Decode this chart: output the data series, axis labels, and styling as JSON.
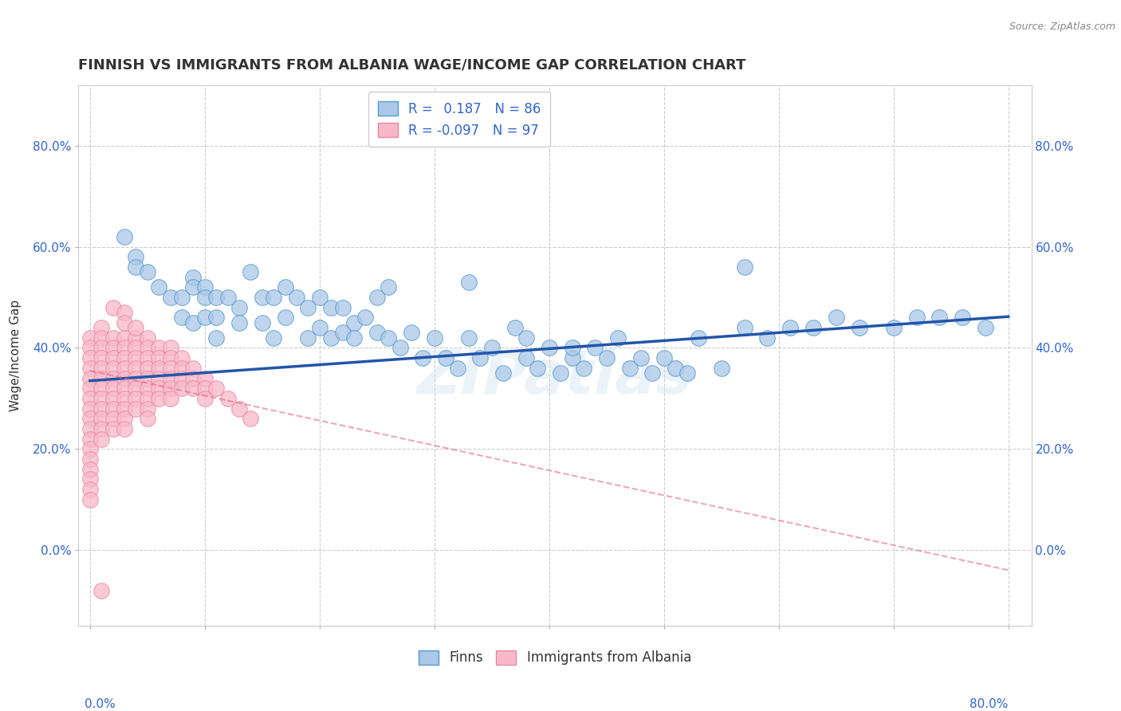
{
  "title": "FINNISH VS IMMIGRANTS FROM ALBANIA WAGE/INCOME GAP CORRELATION CHART",
  "source": "Source: ZipAtlas.com",
  "ylabel": "Wage/Income Gap",
  "xlabel": "",
  "xlim": [
    -0.01,
    0.82
  ],
  "ylim": [
    -0.15,
    0.92
  ],
  "yticks": [
    0.0,
    0.2,
    0.4,
    0.6,
    0.8
  ],
  "xticks_minor": [
    0.0,
    0.1,
    0.2,
    0.3,
    0.4,
    0.5,
    0.6,
    0.7,
    0.8
  ],
  "finn_R": 0.187,
  "finn_N": 86,
  "albania_R": -0.097,
  "albania_N": 97,
  "finn_color": "#aac8e8",
  "finn_edge_color": "#5599cc",
  "finn_line_color": "#2255aa",
  "albania_color": "#f8b8c8",
  "albania_edge_color": "#e888a8",
  "albania_line_color": "#e06080",
  "watermark": "ZIPatlas",
  "background_color": "#ffffff",
  "grid_color": "#cccccc",
  "tick_color": "#3366cc",
  "finn_x": [
    0.03,
    0.04,
    0.04,
    0.05,
    0.06,
    0.07,
    0.08,
    0.08,
    0.09,
    0.09,
    0.09,
    0.1,
    0.1,
    0.1,
    0.11,
    0.11,
    0.11,
    0.12,
    0.13,
    0.13,
    0.14,
    0.15,
    0.15,
    0.16,
    0.16,
    0.17,
    0.17,
    0.18,
    0.19,
    0.19,
    0.2,
    0.2,
    0.21,
    0.21,
    0.22,
    0.22,
    0.23,
    0.23,
    0.24,
    0.25,
    0.25,
    0.26,
    0.27,
    0.28,
    0.29,
    0.3,
    0.31,
    0.32,
    0.33,
    0.34,
    0.35,
    0.36,
    0.37,
    0.38,
    0.39,
    0.4,
    0.41,
    0.42,
    0.43,
    0.44,
    0.45,
    0.46,
    0.47,
    0.48,
    0.49,
    0.5,
    0.51,
    0.53,
    0.55,
    0.57,
    0.59,
    0.61,
    0.63,
    0.65,
    0.67,
    0.7,
    0.72,
    0.74,
    0.76,
    0.78,
    0.33,
    0.42,
    0.38,
    0.26,
    0.52,
    0.57
  ],
  "finn_y": [
    0.62,
    0.58,
    0.56,
    0.55,
    0.52,
    0.5,
    0.5,
    0.46,
    0.54,
    0.52,
    0.45,
    0.52,
    0.5,
    0.46,
    0.5,
    0.46,
    0.42,
    0.5,
    0.48,
    0.45,
    0.55,
    0.5,
    0.45,
    0.5,
    0.42,
    0.52,
    0.46,
    0.5,
    0.48,
    0.42,
    0.5,
    0.44,
    0.48,
    0.42,
    0.48,
    0.43,
    0.45,
    0.42,
    0.46,
    0.5,
    0.43,
    0.42,
    0.4,
    0.43,
    0.38,
    0.42,
    0.38,
    0.36,
    0.42,
    0.38,
    0.4,
    0.35,
    0.44,
    0.38,
    0.36,
    0.4,
    0.35,
    0.38,
    0.36,
    0.4,
    0.38,
    0.42,
    0.36,
    0.38,
    0.35,
    0.38,
    0.36,
    0.42,
    0.36,
    0.44,
    0.42,
    0.44,
    0.44,
    0.46,
    0.44,
    0.44,
    0.46,
    0.46,
    0.46,
    0.44,
    0.53,
    0.4,
    0.42,
    0.52,
    0.35,
    0.56
  ],
  "albania_x": [
    0.0,
    0.0,
    0.0,
    0.0,
    0.0,
    0.0,
    0.0,
    0.0,
    0.0,
    0.0,
    0.0,
    0.0,
    0.0,
    0.0,
    0.0,
    0.0,
    0.0,
    0.01,
    0.01,
    0.01,
    0.01,
    0.01,
    0.01,
    0.01,
    0.01,
    0.01,
    0.01,
    0.01,
    0.01,
    0.02,
    0.02,
    0.02,
    0.02,
    0.02,
    0.02,
    0.02,
    0.02,
    0.02,
    0.02,
    0.03,
    0.03,
    0.03,
    0.03,
    0.03,
    0.03,
    0.03,
    0.03,
    0.03,
    0.03,
    0.04,
    0.04,
    0.04,
    0.04,
    0.04,
    0.04,
    0.04,
    0.04,
    0.05,
    0.05,
    0.05,
    0.05,
    0.05,
    0.05,
    0.05,
    0.05,
    0.05,
    0.06,
    0.06,
    0.06,
    0.06,
    0.06,
    0.06,
    0.07,
    0.07,
    0.07,
    0.07,
    0.07,
    0.07,
    0.08,
    0.08,
    0.08,
    0.08,
    0.09,
    0.09,
    0.09,
    0.1,
    0.1,
    0.1,
    0.11,
    0.12,
    0.13,
    0.14,
    0.01,
    0.02,
    0.03,
    0.03,
    0.04
  ],
  "albania_y": [
    0.42,
    0.4,
    0.38,
    0.36,
    0.34,
    0.32,
    0.3,
    0.28,
    0.26,
    0.24,
    0.22,
    0.2,
    0.18,
    0.16,
    0.14,
    0.12,
    0.1,
    0.44,
    0.42,
    0.4,
    0.38,
    0.36,
    0.34,
    0.32,
    0.3,
    0.28,
    0.26,
    0.24,
    0.22,
    0.42,
    0.4,
    0.38,
    0.36,
    0.34,
    0.32,
    0.3,
    0.28,
    0.26,
    0.24,
    0.42,
    0.4,
    0.38,
    0.36,
    0.34,
    0.32,
    0.3,
    0.28,
    0.26,
    0.24,
    0.42,
    0.4,
    0.38,
    0.36,
    0.34,
    0.32,
    0.3,
    0.28,
    0.42,
    0.4,
    0.38,
    0.36,
    0.34,
    0.32,
    0.3,
    0.28,
    0.26,
    0.4,
    0.38,
    0.36,
    0.34,
    0.32,
    0.3,
    0.4,
    0.38,
    0.36,
    0.34,
    0.32,
    0.3,
    0.38,
    0.36,
    0.34,
    0.32,
    0.36,
    0.34,
    0.32,
    0.34,
    0.32,
    0.3,
    0.32,
    0.3,
    0.28,
    0.26,
    -0.08,
    0.48,
    0.47,
    0.45,
    0.44
  ]
}
